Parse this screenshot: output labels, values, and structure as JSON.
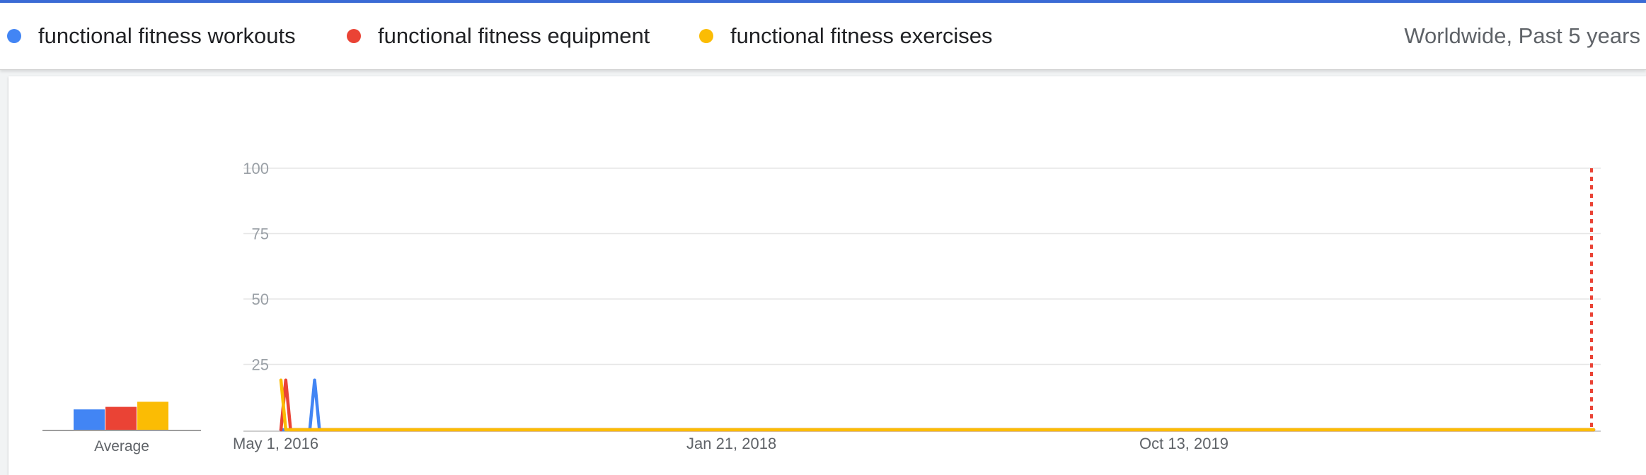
{
  "legend": {
    "items": [
      {
        "label": "functional fitness workouts",
        "color": "#4285f4",
        "icon": "blue-dot-icon"
      },
      {
        "label": "functional fitness equipment",
        "color": "#ea4335",
        "icon": "red-dot-icon"
      },
      {
        "label": "functional fitness exercises",
        "color": "#fbbc04",
        "icon": "yellow-dot-icon"
      }
    ],
    "scope": "Worldwide, Past 5 years"
  },
  "chart_data": {
    "type": "line",
    "y_ticks": [
      "100",
      "75",
      "50",
      "25"
    ],
    "ylim": [
      0,
      100
    ],
    "x_labels": [
      "May 1, 2016",
      "Jan 21, 2018",
      "Oct 13, 2019"
    ],
    "x_range": [
      "May 1, 2016",
      "Apr 18, 2021"
    ],
    "grid": true,
    "average": {
      "label": "Average",
      "values": [
        8,
        9,
        11
      ]
    },
    "series": [
      {
        "name": "functional fitness workouts",
        "color": "#4285f4",
        "values": [
          0,
          0,
          0,
          0,
          0,
          0,
          0,
          19,
          0,
          0,
          0,
          0,
          0,
          0,
          0,
          0,
          0,
          0,
          0,
          0,
          0,
          0,
          0,
          0,
          0,
          0,
          0,
          0,
          0,
          0,
          0,
          0,
          0,
          0,
          0,
          0,
          0,
          0,
          0,
          0,
          0,
          0,
          0,
          0,
          0,
          0,
          0,
          0,
          0,
          0,
          0,
          0,
          0,
          0,
          0,
          0,
          0,
          0,
          0,
          0,
          0,
          0,
          0,
          0,
          0,
          0,
          0,
          0,
          0,
          0,
          0,
          0,
          0,
          0,
          0,
          0,
          0,
          0,
          0,
          0,
          0,
          0,
          0,
          0,
          0,
          0,
          0,
          0,
          0,
          0,
          0,
          0,
          0,
          0,
          0,
          0,
          0,
          0,
          0,
          0,
          0,
          0,
          0,
          0,
          0,
          0,
          0,
          0,
          0,
          0,
          0,
          0,
          0,
          0,
          0,
          0,
          0,
          0,
          0,
          0,
          0,
          0,
          0,
          0,
          0,
          0,
          0,
          0,
          0,
          0,
          0,
          0,
          0,
          0,
          0,
          0,
          0,
          0,
          0,
          0,
          0,
          0,
          0,
          0,
          0,
          0,
          0,
          0,
          0,
          0,
          0,
          0,
          0,
          0,
          0,
          0,
          0,
          0,
          0,
          0,
          0,
          0,
          0,
          0,
          0,
          0,
          0,
          0,
          0,
          0,
          0,
          0,
          0,
          0,
          0,
          0,
          0,
          0,
          0,
          0,
          0,
          0,
          0,
          0,
          0,
          0,
          0,
          0,
          0,
          0,
          0,
          0,
          0,
          0,
          0,
          0,
          0,
          0,
          0,
          0,
          0,
          0,
          0,
          0,
          0,
          0,
          0,
          0,
          0,
          0,
          0,
          0,
          0,
          0,
          0,
          0,
          0,
          0,
          0,
          0,
          0,
          0,
          0,
          0,
          0,
          0,
          0,
          0,
          0,
          0,
          0,
          0,
          0,
          0,
          0,
          0,
          0,
          0,
          0,
          0,
          0,
          0,
          0,
          0,
          0,
          0,
          0,
          0,
          0,
          0,
          0,
          0,
          0,
          0,
          0,
          0,
          0,
          0,
          0,
          0,
          0,
          0,
          0,
          0,
          0,
          0,
          0,
          0,
          0,
          0,
          0,
          0,
          0,
          0
        ]
      },
      {
        "name": "functional fitness equipment",
        "color": "#ea4335",
        "values": [
          0,
          19,
          0,
          0,
          0,
          0,
          0,
          0,
          0,
          0,
          0,
          0,
          0,
          0,
          0,
          0,
          0,
          0,
          0,
          0,
          0,
          0,
          0,
          0,
          0,
          0,
          0,
          0,
          0,
          0,
          0,
          0,
          0,
          0,
          0,
          0,
          0,
          0,
          0,
          0,
          0,
          0,
          0,
          0,
          0,
          0,
          0,
          0,
          0,
          0,
          0,
          0,
          0,
          0,
          0,
          0,
          0,
          0,
          0,
          0,
          0,
          0,
          0,
          0,
          0,
          0,
          0,
          0,
          0,
          0,
          0,
          0,
          0,
          0,
          0,
          0,
          0,
          0,
          0,
          0,
          0,
          0,
          0,
          0,
          0,
          0,
          0,
          0,
          0,
          0,
          0,
          0,
          0,
          0,
          0,
          0,
          0,
          0,
          0,
          0,
          0,
          0,
          0,
          0,
          0,
          0,
          0,
          0,
          0,
          0,
          0,
          0,
          0,
          0,
          0,
          0,
          0,
          0,
          0,
          0,
          0,
          0,
          0,
          0,
          0,
          0,
          0,
          0,
          0,
          0,
          0,
          0,
          0,
          0,
          0,
          0,
          0,
          0,
          0,
          0,
          0,
          0,
          0,
          0,
          0,
          0,
          0,
          0,
          0,
          0,
          0,
          0,
          0,
          0,
          0,
          0,
          0,
          0,
          0,
          0,
          0,
          0,
          0,
          0,
          0,
          0,
          0,
          0,
          0,
          0,
          0,
          0,
          0,
          0,
          0,
          0,
          0,
          0,
          0,
          0,
          0,
          0,
          0,
          0,
          0,
          0,
          0,
          0,
          0,
          0,
          0,
          0,
          0,
          0,
          0,
          0,
          0,
          0,
          0,
          0,
          0,
          0,
          0,
          0,
          0,
          0,
          0,
          0,
          0,
          0,
          0,
          0,
          0,
          0,
          0,
          0,
          0,
          0,
          0,
          0,
          0,
          0,
          0,
          0,
          0,
          0,
          0,
          0,
          0,
          0,
          0,
          0,
          0,
          0,
          0,
          0,
          0,
          0,
          0,
          0,
          0,
          0,
          0,
          0,
          0,
          0,
          0,
          0,
          0,
          0,
          0,
          0,
          0,
          0,
          0,
          0,
          0,
          0,
          0,
          0,
          0,
          0,
          0,
          0,
          0,
          0,
          0,
          0,
          0,
          0,
          0,
          0,
          0
        ]
      },
      {
        "name": "functional fitness exercises",
        "color": "#fbbc04",
        "values": [
          19,
          0,
          0,
          0,
          0,
          0,
          0,
          0,
          0,
          0,
          0,
          0,
          0,
          0,
          0,
          0,
          0,
          0,
          0,
          0,
          0,
          0,
          0,
          0,
          0,
          0,
          0,
          0,
          0,
          0,
          0,
          0,
          0,
          0,
          0,
          0,
          0,
          0,
          0,
          0,
          0,
          0,
          0,
          0,
          0,
          0,
          0,
          0,
          0,
          0,
          0,
          0,
          0,
          0,
          0,
          0,
          0,
          0,
          0,
          0,
          0,
          0,
          0,
          0,
          0,
          0,
          0,
          0,
          0,
          0,
          0,
          0,
          0,
          0,
          0,
          0,
          0,
          0,
          0,
          0,
          0,
          0,
          0,
          0,
          0,
          0,
          0,
          0,
          0,
          0,
          0,
          0,
          0,
          0,
          0,
          0,
          0,
          0,
          0,
          0,
          0,
          0,
          0,
          0,
          0,
          0,
          0,
          0,
          0,
          0,
          0,
          0,
          0,
          0,
          0,
          0,
          0,
          0,
          0,
          0,
          0,
          0,
          0,
          0,
          0,
          0,
          0,
          0,
          0,
          0,
          0,
          0,
          0,
          0,
          0,
          0,
          0,
          0,
          0,
          0,
          0,
          0,
          0,
          0,
          0,
          0,
          0,
          0,
          0,
          0,
          0,
          0,
          0,
          0,
          0,
          0,
          0,
          0,
          0,
          0,
          0,
          0,
          0,
          0,
          0,
          0,
          0,
          0,
          0,
          0,
          0,
          0,
          0,
          0,
          0,
          0,
          0,
          0,
          0,
          0,
          0,
          0,
          0,
          0,
          0,
          0,
          0,
          0,
          0,
          0,
          0,
          0,
          0,
          0,
          0,
          0,
          0,
          0,
          0,
          0,
          0,
          0,
          0,
          0,
          0,
          0,
          0,
          0,
          0,
          0,
          0,
          0,
          0,
          0,
          0,
          0,
          0,
          0,
          0,
          0,
          0,
          0,
          0,
          0,
          0,
          0,
          0,
          0,
          0,
          0,
          0,
          0,
          0,
          0,
          0,
          0,
          0,
          0,
          0,
          0,
          0,
          0,
          0,
          0,
          0,
          0,
          0,
          0,
          0,
          0,
          0,
          0,
          0,
          0,
          0,
          0,
          0,
          0,
          0,
          0,
          0,
          0,
          0,
          0,
          0,
          0,
          0,
          0,
          0,
          0,
          0,
          0,
          0,
          0
        ]
      }
    ]
  }
}
